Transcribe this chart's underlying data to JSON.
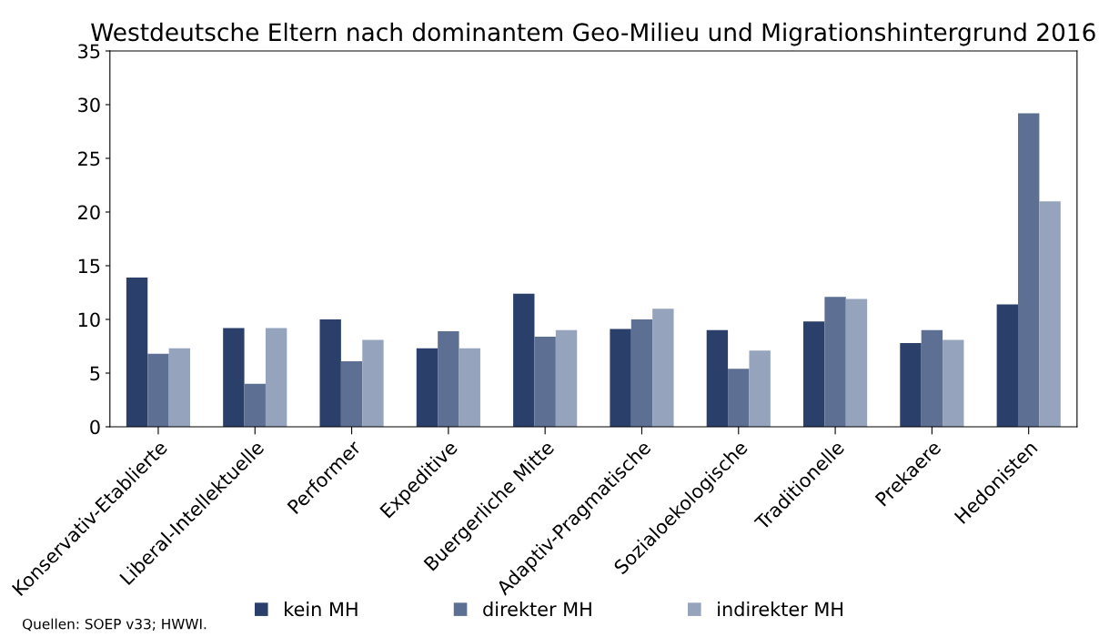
{
  "chart_data": {
    "type": "bar",
    "title": "Westdeutsche Eltern nach dominantem Geo-Milieu und Migrationshintergrund 2016",
    "categories": [
      "Konservativ-Etablierte",
      "Liberal-Intellektuelle",
      "Performer",
      "Expeditive",
      "Buergerliche Mitte",
      "Adaptiv-Pragmatische",
      "Sozialoekologische",
      "Traditionelle",
      "Prekaere",
      "Hedonisten"
    ],
    "series": [
      {
        "name": "kein MH",
        "color": "#2b3f6b",
        "values": [
          13.9,
          9.2,
          10.0,
          7.3,
          12.4,
          9.1,
          9.0,
          9.8,
          7.8,
          11.4
        ]
      },
      {
        "name": "direkter MH",
        "color": "#5d7093",
        "values": [
          6.8,
          4.0,
          6.1,
          8.9,
          8.4,
          10.0,
          5.4,
          12.1,
          9.0,
          29.2
        ]
      },
      {
        "name": "indirekter MH",
        "color": "#96a3bd",
        "values": [
          7.3,
          9.2,
          8.1,
          7.3,
          9.0,
          11.0,
          7.1,
          11.9,
          8.1,
          21.0
        ]
      }
    ],
    "ylim": [
      0,
      35
    ],
    "yticks": [
      0,
      5,
      10,
      15,
      20,
      25,
      30,
      35
    ],
    "grid": false,
    "legend": "bottom",
    "annotations": [
      "Quellen: SOEP v33; HWWI."
    ]
  }
}
